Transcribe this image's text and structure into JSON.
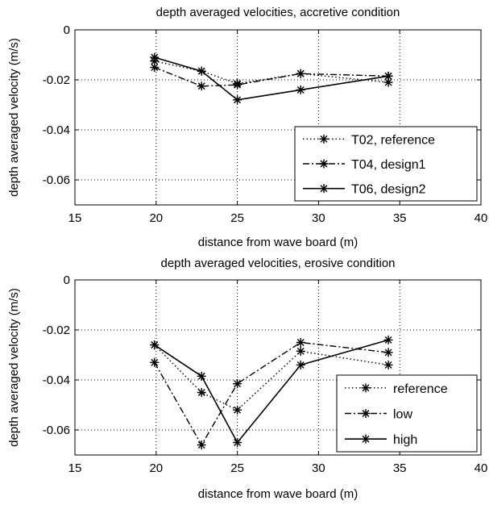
{
  "chart_data": [
    {
      "type": "line",
      "title": "depth averaged velocities, accretive condition",
      "xlabel": "distance from wave board (m)",
      "ylabel": "depth averaged velocity (m/s)",
      "xlim": [
        15,
        40
      ],
      "ylim": [
        -0.07,
        0
      ],
      "xticks": [
        15,
        20,
        25,
        30,
        35,
        40
      ],
      "yticks": [
        0,
        -0.02,
        -0.04,
        -0.06
      ],
      "xtick_labels": [
        "15",
        "20",
        "25",
        "30",
        "35",
        "40"
      ],
      "ytick_labels": [
        "0",
        "-0.02",
        "-0.04",
        "-0.06"
      ],
      "grid": true,
      "legend_position": "bottom-right",
      "series": [
        {
          "name": "T02, reference",
          "style": "dotted",
          "marker": "star",
          "x": [
            19.9,
            22.8,
            25.0,
            28.9,
            34.3
          ],
          "y": [
            -0.0125,
            -0.0165,
            -0.0215,
            -0.0175,
            -0.021
          ]
        },
        {
          "name": "T04, design1",
          "style": "dashdot",
          "marker": "star",
          "x": [
            19.9,
            22.8,
            25.0,
            28.9,
            34.3
          ],
          "y": [
            -0.015,
            -0.0225,
            -0.022,
            -0.0175,
            -0.0185
          ]
        },
        {
          "name": "T06, design2",
          "style": "solid",
          "marker": "star",
          "x": [
            19.9,
            22.8,
            25.0,
            28.9,
            34.3
          ],
          "y": [
            -0.011,
            -0.0165,
            -0.028,
            -0.024,
            -0.0185
          ]
        }
      ]
    },
    {
      "type": "line",
      "title": "depth averaged velocities, erosive condition",
      "xlabel": "distance from wave board (m)",
      "ylabel": "depth averaged velocity (m/s)",
      "xlim": [
        15,
        40
      ],
      "ylim": [
        -0.07,
        0
      ],
      "xticks": [
        15,
        20,
        25,
        30,
        35,
        40
      ],
      "yticks": [
        0,
        -0.02,
        -0.04,
        -0.06
      ],
      "xtick_labels": [
        "15",
        "20",
        "25",
        "30",
        "35",
        "40"
      ],
      "ytick_labels": [
        "0",
        "-0.02",
        "-0.04",
        "-0.06"
      ],
      "grid": true,
      "legend_position": "bottom-right",
      "series": [
        {
          "name": "reference",
          "style": "dotted",
          "marker": "star",
          "x": [
            19.9,
            22.8,
            25.0,
            28.9,
            34.3
          ],
          "y": [
            -0.026,
            -0.045,
            -0.052,
            -0.0285,
            -0.034
          ]
        },
        {
          "name": "low",
          "style": "dashdot",
          "marker": "star",
          "x": [
            19.9,
            22.8,
            25.0,
            28.9,
            34.3
          ],
          "y": [
            -0.033,
            -0.066,
            -0.0415,
            -0.025,
            -0.029
          ]
        },
        {
          "name": "high",
          "style": "solid",
          "marker": "star",
          "x": [
            19.9,
            22.8,
            25.0,
            28.9,
            34.3
          ],
          "y": [
            -0.026,
            -0.0385,
            -0.065,
            -0.034,
            -0.024
          ]
        }
      ]
    }
  ]
}
